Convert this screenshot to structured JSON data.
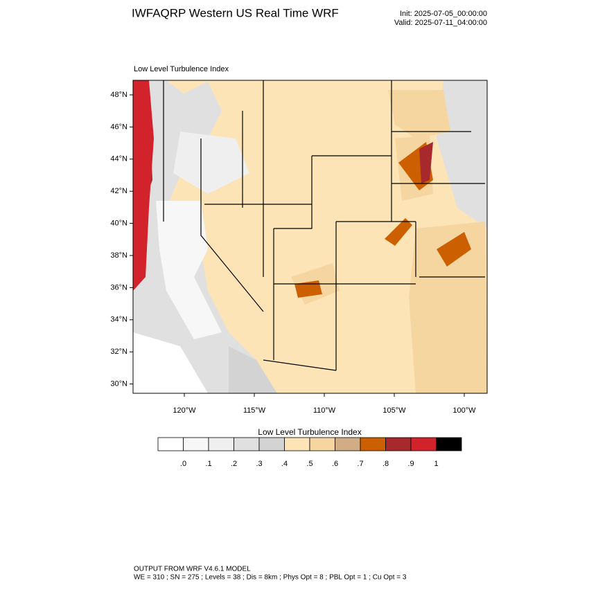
{
  "header": {
    "title": "IWFAQRP Western US Real Time WRF",
    "init": "Init: 2025-07-05_00:00:00",
    "valid": "Valid: 2025-07-11_04:00:00"
  },
  "map": {
    "subtitle": "Low Level Turbulence Index",
    "lat_labels": [
      "48°N",
      "46°N",
      "44°N",
      "42°N",
      "40°N",
      "38°N",
      "36°N",
      "34°N",
      "32°N",
      "30°N"
    ],
    "lon_labels": [
      "120°W",
      "115°W",
      "110°W",
      "105°W",
      "100°W"
    ]
  },
  "colorbar": {
    "title": "Low Level Turbulence Index",
    "labels": [
      ".0",
      ".1",
      ".2",
      ".3",
      ".4",
      ".5",
      ".6",
      ".7",
      ".8",
      ".9",
      "1"
    ],
    "colors": [
      "#ffffff",
      "#f7f7f7",
      "#efefef",
      "#e0e0e0",
      "#d3d3d3",
      "#fde4b7",
      "#f5d6a0",
      "#d1ac85",
      "#cc6000",
      "#a8292b",
      "#d2232d",
      "#000000"
    ]
  },
  "footer": {
    "line1": "OUTPUT FROM WRF V4.6.1 MODEL",
    "line2": "WE = 310 ; SN = 275 ; Levels = 38 ; Dis = 8km ; Phys Opt = 8 ; PBL Opt = 1 ; Cu Opt = 3"
  }
}
